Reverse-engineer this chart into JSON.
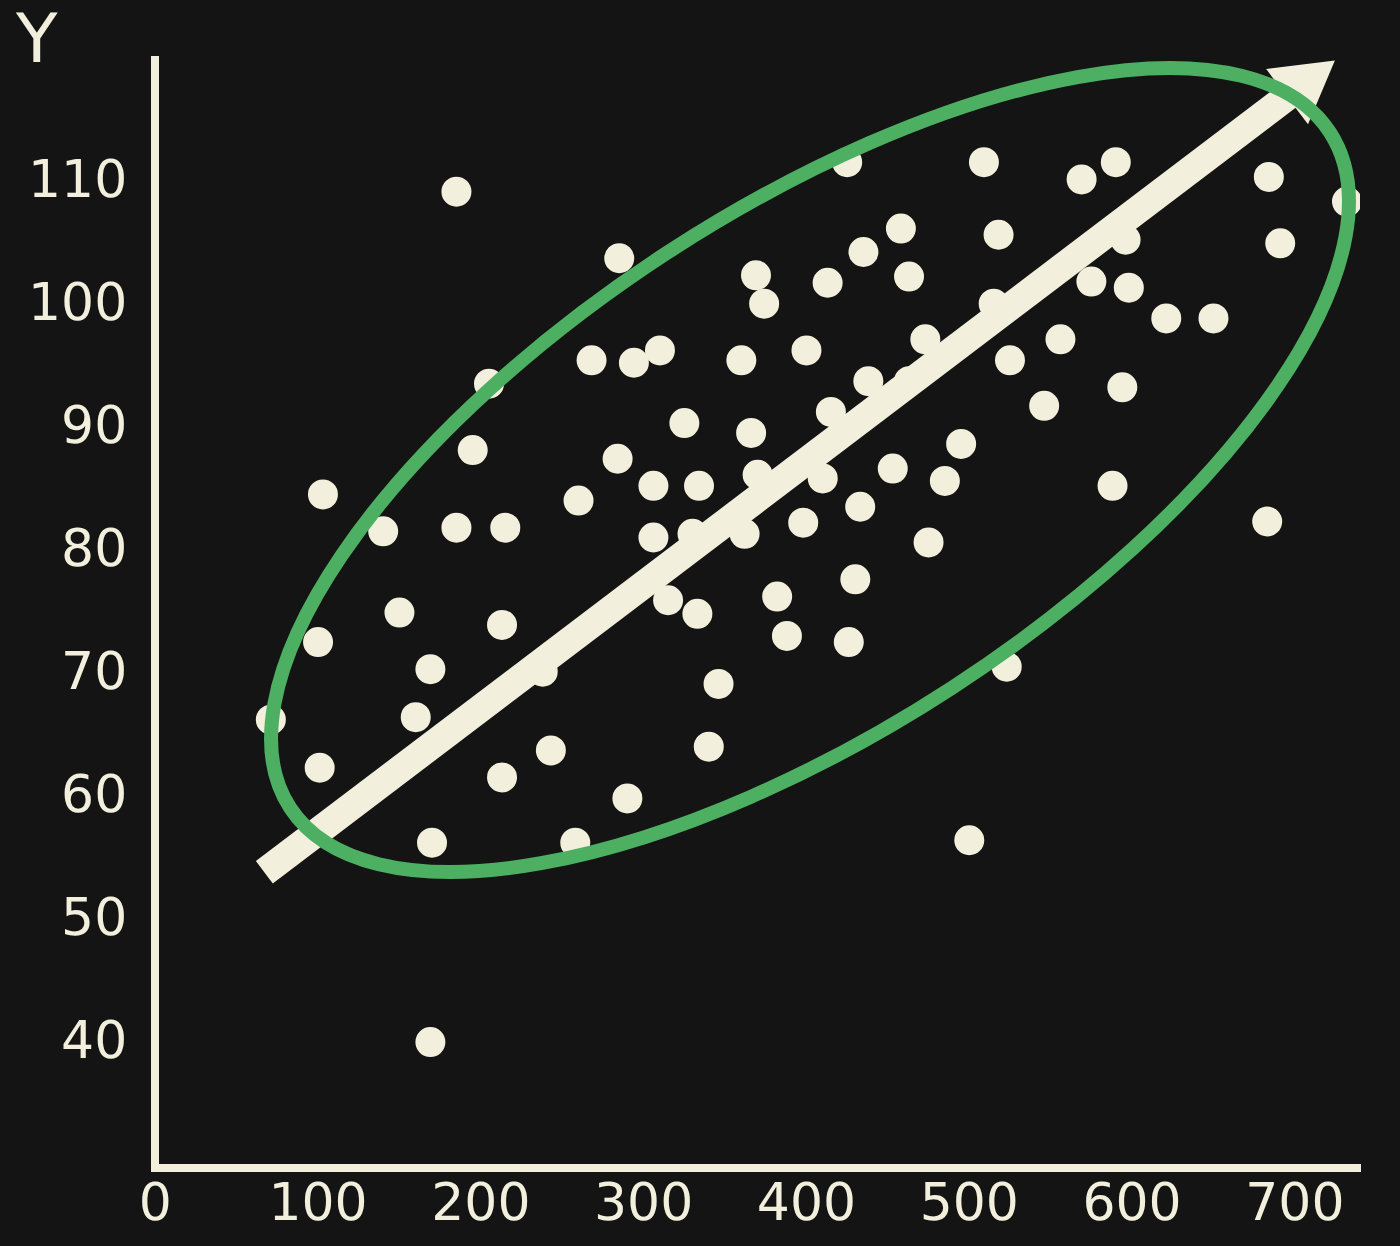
{
  "chart_data": {
    "type": "scatter",
    "ylabel": "Y",
    "xlim": [
      0,
      740
    ],
    "xticks": [
      0,
      100,
      200,
      300,
      400,
      500,
      600,
      700
    ],
    "ylim": [
      30,
      120
    ],
    "yticks": [
      40,
      50,
      60,
      70,
      80,
      90,
      100,
      110
    ],
    "grid": false,
    "marker": "circle",
    "series": [
      {
        "color": "#f2efdc",
        "x": [
          71,
          103,
          100,
          101,
          140,
          150,
          160,
          169,
          170,
          169,
          185,
          195,
          205,
          185,
          215,
          213,
          213,
          243,
          238,
          258,
          260,
          268,
          285,
          284,
          294,
          310,
          306,
          290,
          315,
          306,
          325,
          334,
          333,
          340,
          346,
          330,
          360,
          362,
          369,
          366,
          374,
          370,
          382,
          388,
          398,
          400,
          413,
          415,
          410,
          435,
          438,
          433,
          430,
          426,
          425,
          458,
          463,
          453,
          463,
          473,
          475,
          485,
          495,
          500,
          509,
          515,
          518,
          525,
          523,
          546,
          556,
          569,
          575,
          588,
          594,
          590,
          596,
          598,
          621,
          650,
          684,
          691,
          683,
          732
        ],
        "values": [
          66.4,
          84.7,
          72.7,
          62.5,
          81.7,
          75.1,
          66.6,
          70.5,
          56.4,
          40.2,
          109.3,
          88.3,
          93.7,
          82,
          82,
          74.1,
          61.7,
          63.9,
          70.3,
          56.4,
          84.2,
          95.6,
          103.9,
          87.6,
          95.4,
          96.4,
          85.4,
          60,
          76.1,
          81.2,
          90.5,
          85.4,
          75,
          64.2,
          69.3,
          81.5,
          95.6,
          81.5,
          102.5,
          89.7,
          100.2,
          86.3,
          76.4,
          73.2,
          82.4,
          96.4,
          101.9,
          91.4,
          86,
          104.4,
          93.9,
          83.7,
          77.8,
          72.7,
          111.7,
          106.3,
          102.4,
          86.8,
          93.9,
          97.3,
          80.8,
          85.8,
          88.8,
          56.6,
          111.7,
          100.2,
          105.8,
          95.6,
          70.7,
          91.9,
          97.3,
          110.3,
          102,
          85.4,
          93.4,
          111.7,
          105.4,
          101.5,
          99,
          99,
          110.5,
          105.1,
          82.5,
          108.5
        ]
      },
      {
        "type": "line",
        "marker": "triangle",
        "color": "#f2efdc",
        "x": [
          67,
          705
        ],
        "values": [
          54,
          118
        ]
      }
    ]
  }
}
